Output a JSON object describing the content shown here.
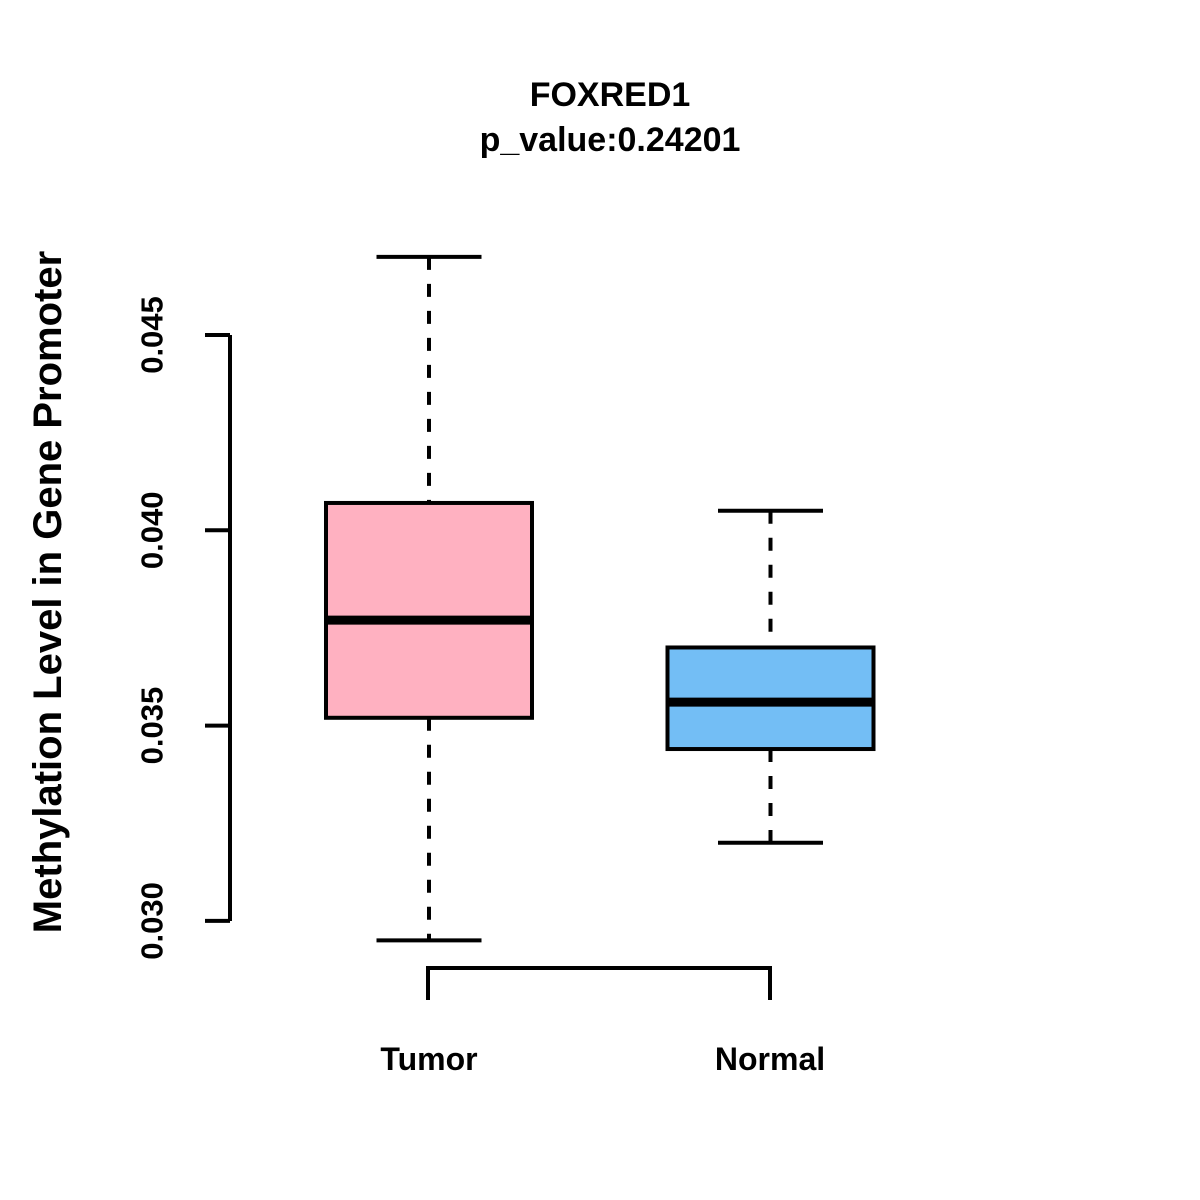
{
  "chart_data": {
    "type": "boxplot",
    "title": "FOXRED1",
    "subtitle": "p_value:0.24201",
    "ylabel": "Methylation Level in Gene Promoter",
    "xlabel": "",
    "categories": [
      "Tumor",
      "Normal"
    ],
    "series": [
      {
        "name": "Tumor",
        "color": "#FFB1C1",
        "min": 0.0295,
        "q1": 0.0352,
        "median": 0.0377,
        "q3": 0.0407,
        "max": 0.047
      },
      {
        "name": "Normal",
        "color": "#73BEF5",
        "min": 0.032,
        "q1": 0.0344,
        "median": 0.0356,
        "q3": 0.037,
        "max": 0.0405
      }
    ],
    "yticks": [
      0.03,
      0.035,
      0.04,
      0.045
    ],
    "ytick_labels": [
      "0.030",
      "0.035",
      "0.040",
      "0.045"
    ],
    "ylim": [
      0.0295,
      0.047
    ],
    "grid": false,
    "legend": "none",
    "stroke_color": "#000000"
  }
}
